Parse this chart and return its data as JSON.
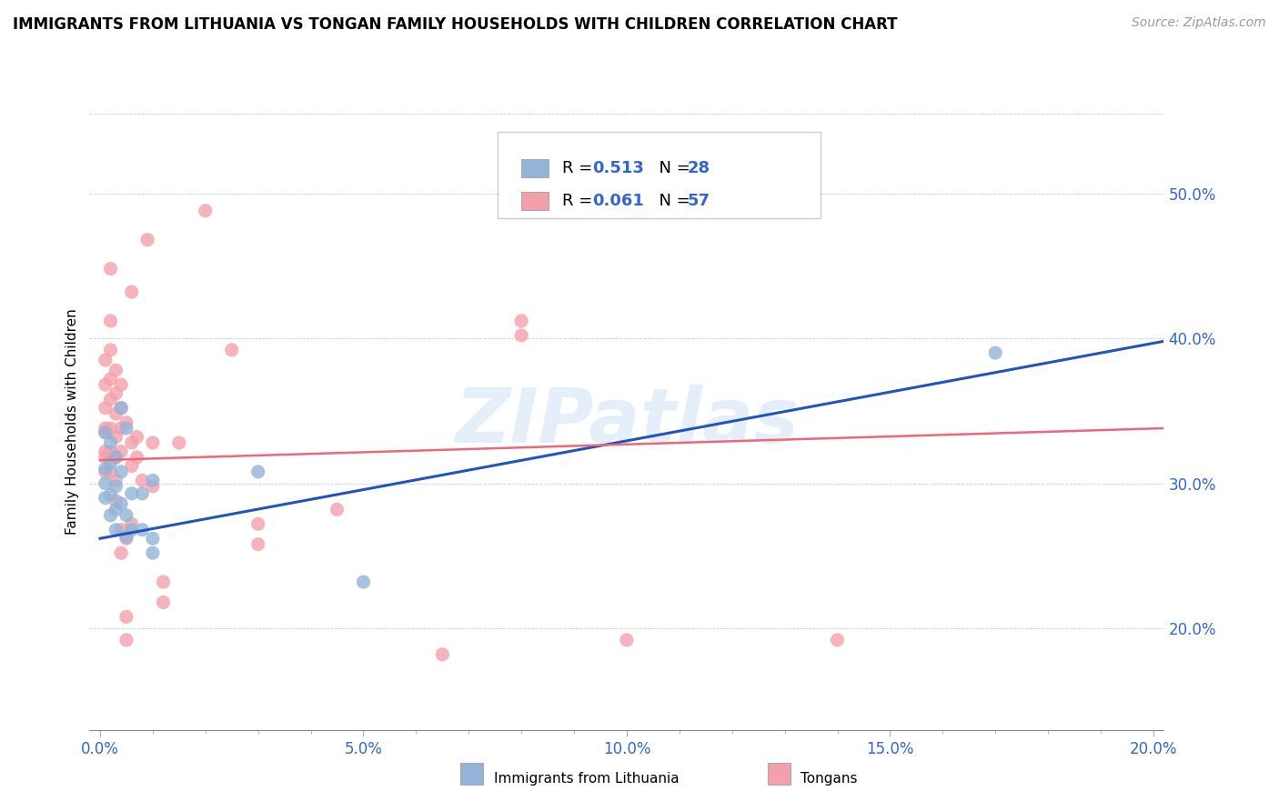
{
  "title": "IMMIGRANTS FROM LITHUANIA VS TONGAN FAMILY HOUSEHOLDS WITH CHILDREN CORRELATION CHART",
  "source": "Source: ZipAtlas.com",
  "ylabel_label": "Family Households with Children",
  "x_tick_labels": [
    "0.0%",
    "",
    "",
    "",
    "",
    "5.0%",
    "",
    "",
    "",
    "",
    "10.0%",
    "",
    "",
    "",
    "",
    "15.0%",
    "",
    "",
    "",
    "",
    "20.0%"
  ],
  "x_tick_values": [
    0.0,
    0.01,
    0.02,
    0.03,
    0.04,
    0.05,
    0.06,
    0.07,
    0.08,
    0.09,
    0.1,
    0.11,
    0.12,
    0.13,
    0.14,
    0.15,
    0.16,
    0.17,
    0.18,
    0.19,
    0.2
  ],
  "x_tick_major_labels": [
    "0.0%",
    "5.0%",
    "10.0%",
    "15.0%",
    "20.0%"
  ],
  "x_tick_major_values": [
    0.0,
    0.05,
    0.1,
    0.15,
    0.2
  ],
  "y_tick_labels": [
    "20.0%",
    "30.0%",
    "40.0%",
    "50.0%"
  ],
  "y_tick_values": [
    0.2,
    0.3,
    0.4,
    0.5
  ],
  "xlim": [
    -0.002,
    0.202
  ],
  "ylim": [
    0.13,
    0.555
  ],
  "blue_color": "#92B4D8",
  "pink_color": "#F4A0AA",
  "blue_line_color": "#2255BB",
  "pink_line_color": "#EE6677",
  "text_blue": "#3366CC",
  "watermark": "ZIPatlas",
  "blue_scatter": [
    [
      0.001,
      0.335
    ],
    [
      0.001,
      0.31
    ],
    [
      0.001,
      0.3
    ],
    [
      0.001,
      0.29
    ],
    [
      0.002,
      0.328
    ],
    [
      0.002,
      0.314
    ],
    [
      0.002,
      0.292
    ],
    [
      0.002,
      0.278
    ],
    [
      0.003,
      0.318
    ],
    [
      0.003,
      0.298
    ],
    [
      0.003,
      0.282
    ],
    [
      0.003,
      0.268
    ],
    [
      0.004,
      0.352
    ],
    [
      0.004,
      0.308
    ],
    [
      0.004,
      0.286
    ],
    [
      0.005,
      0.338
    ],
    [
      0.005,
      0.278
    ],
    [
      0.005,
      0.263
    ],
    [
      0.006,
      0.293
    ],
    [
      0.006,
      0.268
    ],
    [
      0.008,
      0.293
    ],
    [
      0.008,
      0.268
    ],
    [
      0.01,
      0.302
    ],
    [
      0.01,
      0.262
    ],
    [
      0.01,
      0.252
    ],
    [
      0.03,
      0.308
    ],
    [
      0.05,
      0.232
    ],
    [
      0.17,
      0.39
    ]
  ],
  "pink_scatter": [
    [
      0.001,
      0.385
    ],
    [
      0.001,
      0.368
    ],
    [
      0.001,
      0.352
    ],
    [
      0.001,
      0.338
    ],
    [
      0.001,
      0.322
    ],
    [
      0.001,
      0.308
    ],
    [
      0.001,
      0.335
    ],
    [
      0.001,
      0.318
    ],
    [
      0.002,
      0.448
    ],
    [
      0.002,
      0.412
    ],
    [
      0.002,
      0.392
    ],
    [
      0.002,
      0.372
    ],
    [
      0.002,
      0.358
    ],
    [
      0.002,
      0.338
    ],
    [
      0.002,
      0.322
    ],
    [
      0.002,
      0.308
    ],
    [
      0.003,
      0.378
    ],
    [
      0.003,
      0.362
    ],
    [
      0.003,
      0.348
    ],
    [
      0.003,
      0.332
    ],
    [
      0.003,
      0.318
    ],
    [
      0.003,
      0.302
    ],
    [
      0.003,
      0.288
    ],
    [
      0.004,
      0.368
    ],
    [
      0.004,
      0.352
    ],
    [
      0.004,
      0.338
    ],
    [
      0.004,
      0.322
    ],
    [
      0.004,
      0.268
    ],
    [
      0.004,
      0.252
    ],
    [
      0.005,
      0.342
    ],
    [
      0.005,
      0.262
    ],
    [
      0.005,
      0.208
    ],
    [
      0.005,
      0.192
    ],
    [
      0.006,
      0.432
    ],
    [
      0.006,
      0.328
    ],
    [
      0.006,
      0.312
    ],
    [
      0.006,
      0.272
    ],
    [
      0.007,
      0.332
    ],
    [
      0.007,
      0.318
    ],
    [
      0.008,
      0.302
    ],
    [
      0.009,
      0.468
    ],
    [
      0.01,
      0.328
    ],
    [
      0.01,
      0.298
    ],
    [
      0.012,
      0.232
    ],
    [
      0.012,
      0.218
    ],
    [
      0.015,
      0.328
    ],
    [
      0.02,
      0.488
    ],
    [
      0.025,
      0.392
    ],
    [
      0.03,
      0.272
    ],
    [
      0.03,
      0.258
    ],
    [
      0.045,
      0.282
    ],
    [
      0.065,
      0.182
    ],
    [
      0.08,
      0.412
    ],
    [
      0.08,
      0.402
    ],
    [
      0.1,
      0.192
    ],
    [
      0.14,
      0.192
    ]
  ],
  "blue_trendline": [
    [
      0.0,
      0.262
    ],
    [
      0.202,
      0.398
    ]
  ],
  "pink_trendline": [
    [
      0.0,
      0.316
    ],
    [
      0.202,
      0.338
    ]
  ]
}
